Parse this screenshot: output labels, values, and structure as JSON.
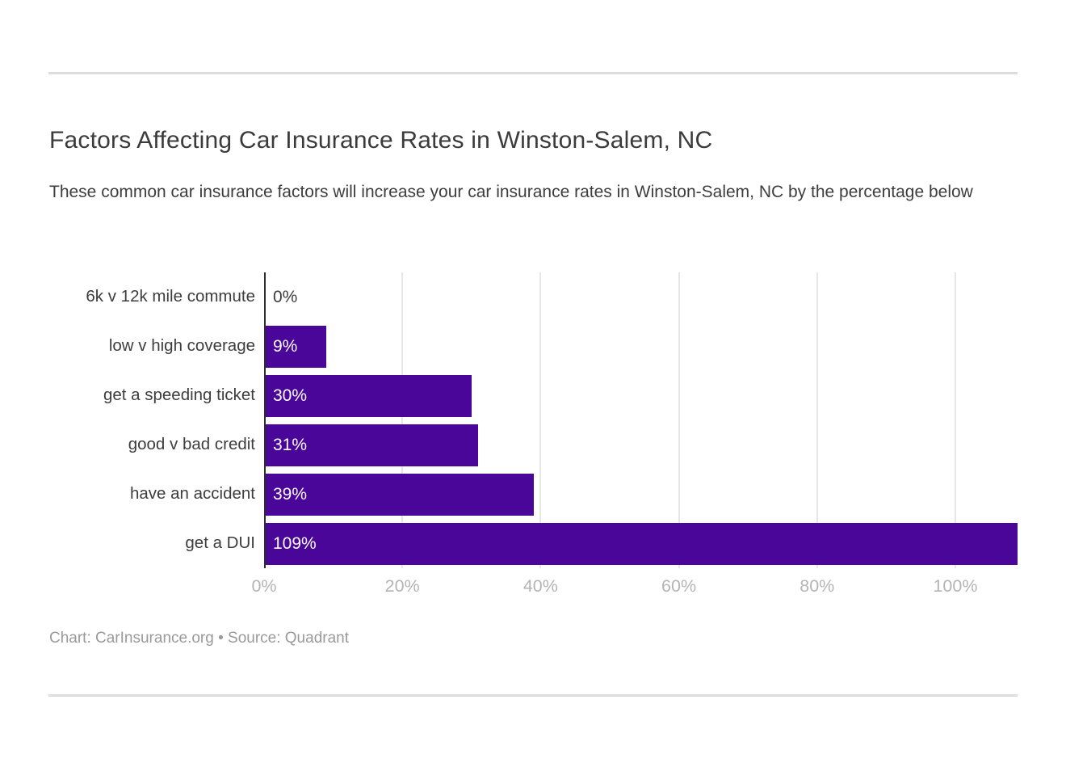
{
  "page": {
    "title": "Factors Affecting Car Insurance Rates in Winston-Salem, NC",
    "subtitle": "These common car insurance factors will increase your car insurance rates in Winston-Salem, NC by the percentage below",
    "footer": "Chart: CarInsurance.org • Source: Quadrant"
  },
  "chart_data": {
    "type": "bar",
    "orientation": "horizontal",
    "title": "Factors Affecting Car Insurance Rates in Winston-Salem, NC",
    "subtitle": "These common car insurance factors will increase your car insurance rates in Winston-Salem, NC by the percentage below",
    "categories": [
      "6k v 12k mile commute",
      "low v high coverage",
      "get a speeding ticket",
      "good v bad credit",
      "have an accident",
      "get a DUI"
    ],
    "values": [
      0,
      9,
      30,
      31,
      39,
      109
    ],
    "value_labels": [
      "0%",
      "9%",
      "30%",
      "31%",
      "39%",
      "109%"
    ],
    "x_ticks": [
      "0%",
      "20%",
      "40%",
      "60%",
      "80%",
      "100%"
    ],
    "x_tick_values": [
      0,
      20,
      40,
      60,
      80,
      100
    ],
    "xlim": [
      0,
      109
    ],
    "grid": true,
    "legend": false,
    "bar_color": "#4a0599",
    "axis_line_color": "#2e2e2e",
    "gridline_color": "#e7e7e7",
    "tick_label_color": "#b4b4b4"
  }
}
